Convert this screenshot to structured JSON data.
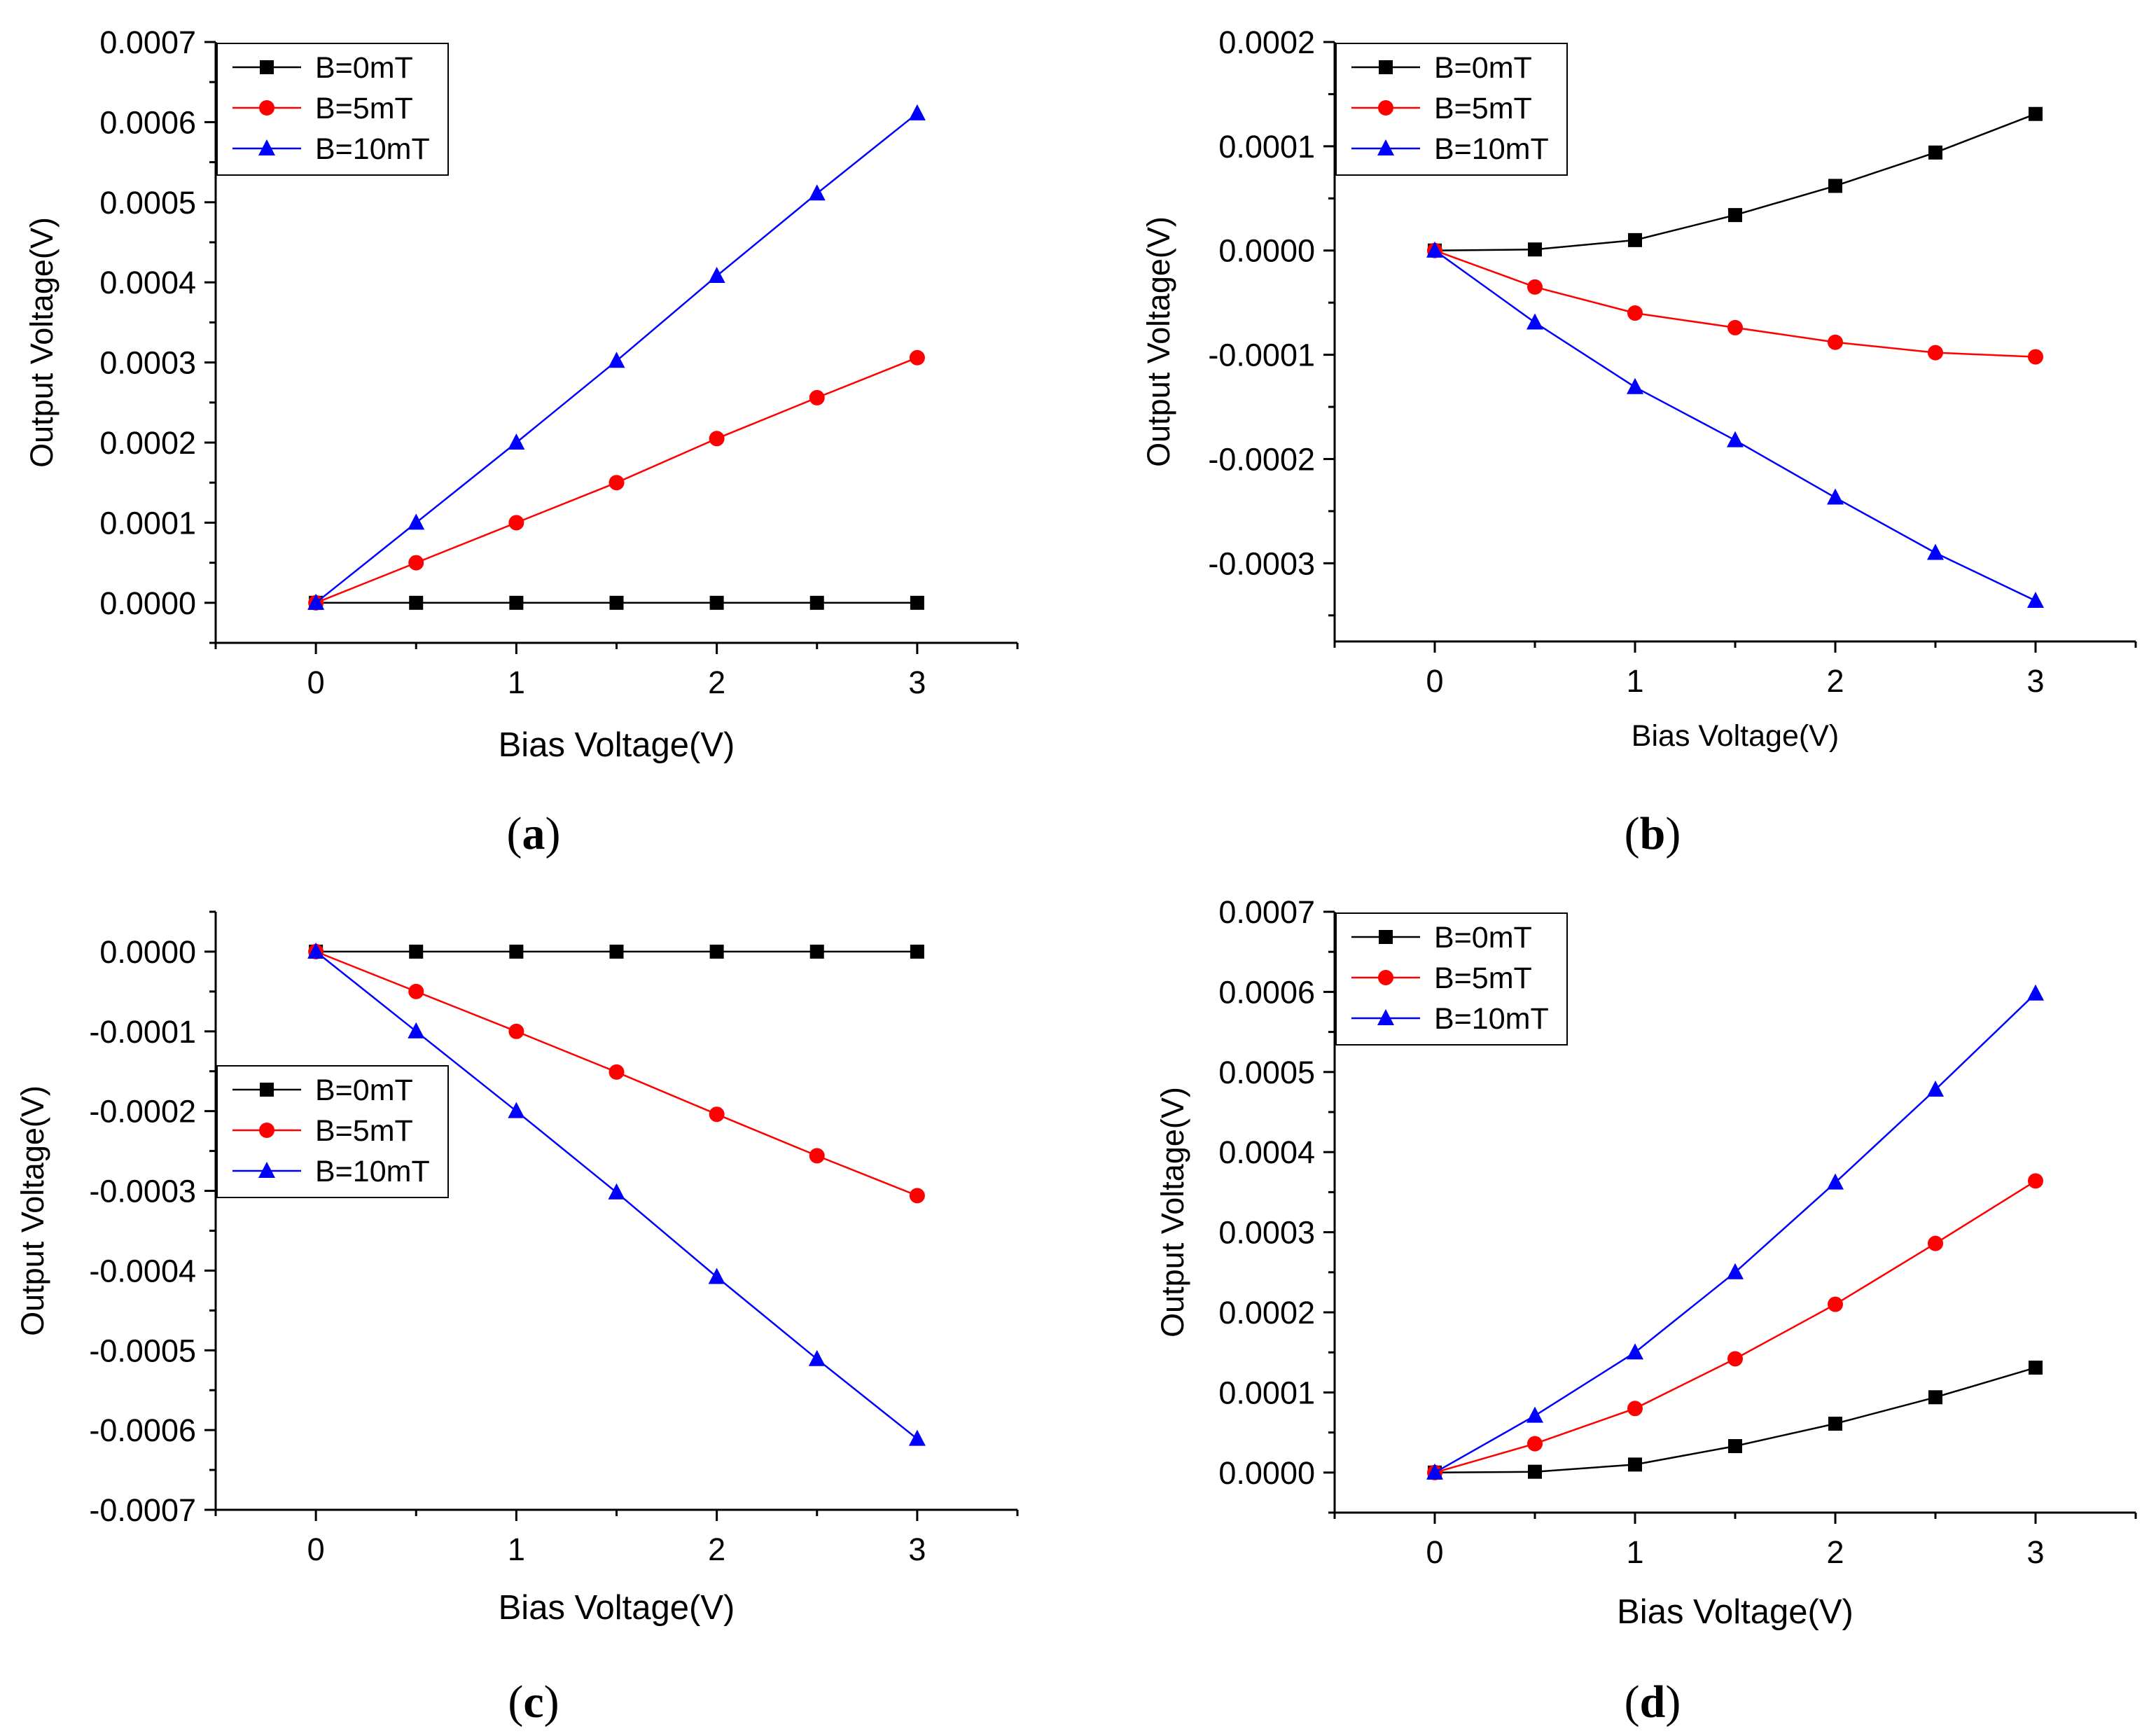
{
  "colors": {
    "B0": "#000000",
    "B5": "#ff0000",
    "B10": "#0000ff",
    "axis": "#000000",
    "background": "#ffffff"
  },
  "chart_data": [
    {
      "id": "a",
      "panel_label": {
        "open": "(",
        "letter": "a",
        "close": ")"
      },
      "type": "line",
      "xlabel": "Bias Voltage(V)",
      "ylabel": "Output Voltage(V)",
      "xlim": [
        -0.5,
        3.5
      ],
      "ylim": [
        -5e-05,
        0.0007
      ],
      "xticks": [
        0,
        1,
        2,
        3
      ],
      "xtick_labels": [
        "0",
        "1",
        "2",
        "3"
      ],
      "yticks": [
        0,
        0.0001,
        0.0002,
        0.0003,
        0.0004,
        0.0005,
        0.0006,
        0.0007
      ],
      "ytick_labels": [
        "0.0000",
        "0.0001",
        "0.0002",
        "0.0003",
        "0.0004",
        "0.0005",
        "0.0006",
        "0.0007"
      ],
      "legend_position": "top-left",
      "x": [
        0,
        0.5,
        1,
        1.5,
        2,
        2.5,
        3
      ],
      "series": [
        {
          "name": "B=0mT",
          "marker": "square",
          "color": "#000000",
          "values": [
            0,
            0,
            0,
            0,
            0,
            0,
            0
          ]
        },
        {
          "name": "B=5mT",
          "marker": "circle",
          "color": "#ff0000",
          "values": [
            0,
            5e-05,
            0.0001,
            0.00015,
            0.000205,
            0.000256,
            0.000306
          ]
        },
        {
          "name": "B=10mT",
          "marker": "triangle",
          "color": "#0000ff",
          "values": [
            0,
            0.0001,
            0.0002,
            0.000302,
            0.000408,
            0.000511,
            0.000611
          ]
        }
      ]
    },
    {
      "id": "b",
      "panel_label": {
        "open": "(",
        "letter": "b",
        "close": ")"
      },
      "type": "line",
      "xlabel": "Bias Voltage(V)",
      "ylabel": "Output Voltage(V)",
      "xlim": [
        -0.5,
        3.5
      ],
      "ylim": [
        -0.000375,
        0.0002
      ],
      "xticks": [
        0,
        1,
        2,
        3
      ],
      "xtick_labels": [
        "0",
        "1",
        "2",
        "3"
      ],
      "yticks": [
        -0.0003,
        -0.0002,
        -0.0001,
        0,
        0.0001,
        0.0002
      ],
      "ytick_labels": [
        "-0.0003",
        "-0.0002",
        "-0.0001",
        "0.0000",
        "0.0001",
        "0.0002"
      ],
      "legend_position": "top-left",
      "x": [
        0,
        0.5,
        1,
        1.5,
        2,
        2.5,
        3
      ],
      "series": [
        {
          "name": "B=0mT",
          "marker": "square",
          "color": "#000000",
          "values": [
            0,
            1e-06,
            1e-05,
            3.4e-05,
            6.2e-05,
            9.4e-05,
            0.000131
          ]
        },
        {
          "name": "B=5mT",
          "marker": "circle",
          "color": "#ff0000",
          "values": [
            0,
            -3.5e-05,
            -6e-05,
            -7.4e-05,
            -8.8e-05,
            -9.8e-05,
            -0.000102
          ]
        },
        {
          "name": "B=10mT",
          "marker": "triangle",
          "color": "#0000ff",
          "values": [
            0,
            -6.9e-05,
            -0.000131,
            -0.000182,
            -0.000237,
            -0.00029,
            -0.000336
          ]
        }
      ]
    },
    {
      "id": "c",
      "panel_label": {
        "open": "(",
        "letter": "c",
        "close": ")"
      },
      "type": "line",
      "xlabel": "Bias Voltage(V)",
      "ylabel": "Output Voltage(V)",
      "xlim": [
        -0.5,
        3.5
      ],
      "ylim": [
        -0.0007,
        5e-05
      ],
      "xticks": [
        0,
        1,
        2,
        3
      ],
      "xtick_labels": [
        "0",
        "1",
        "2",
        "3"
      ],
      "yticks": [
        0,
        -0.0001,
        -0.0002,
        -0.0003,
        -0.0004,
        -0.0005,
        -0.0006,
        -0.0007
      ],
      "ytick_labels": [
        "0.0000",
        "-0.0001",
        "-0.0002",
        "-0.0003",
        "-0.0004",
        "-0.0005",
        "-0.0006",
        "-0.0007"
      ],
      "legend_position": "middle-left",
      "x": [
        0,
        0.5,
        1,
        1.5,
        2,
        2.5,
        3
      ],
      "series": [
        {
          "name": "B=0mT",
          "marker": "square",
          "color": "#000000",
          "values": [
            0,
            0,
            0,
            0,
            0,
            0,
            0
          ]
        },
        {
          "name": "B=5mT",
          "marker": "circle",
          "color": "#ff0000",
          "values": [
            0,
            -5e-05,
            -0.0001,
            -0.000151,
            -0.000204,
            -0.000256,
            -0.000306
          ]
        },
        {
          "name": "B=10mT",
          "marker": "triangle",
          "color": "#0000ff",
          "values": [
            0,
            -0.0001,
            -0.0002,
            -0.000302,
            -0.000408,
            -0.000511,
            -0.000611
          ]
        }
      ]
    },
    {
      "id": "d",
      "panel_label": {
        "open": "(",
        "letter": "d",
        "close": ")"
      },
      "type": "line",
      "xlabel": "Bias Voltage(V)",
      "ylabel": "Output Voltage(V)",
      "xlim": [
        -0.5,
        3.5
      ],
      "ylim": [
        -5e-05,
        0.0007
      ],
      "xticks": [
        0,
        1,
        2,
        3
      ],
      "xtick_labels": [
        "0",
        "1",
        "2",
        "3"
      ],
      "yticks": [
        0,
        0.0001,
        0.0002,
        0.0003,
        0.0004,
        0.0005,
        0.0006,
        0.0007
      ],
      "ytick_labels": [
        "0.0000",
        "0.0001",
        "0.0002",
        "0.0003",
        "0.0004",
        "0.0005",
        "0.0006",
        "0.0007"
      ],
      "legend_position": "top-left",
      "x": [
        0,
        0.5,
        1,
        1.5,
        2,
        2.5,
        3
      ],
      "series": [
        {
          "name": "B=0mT",
          "marker": "square",
          "color": "#000000",
          "values": [
            0,
            1e-06,
            1e-05,
            3.3e-05,
            6.1e-05,
            9.4e-05,
            0.000131
          ]
        },
        {
          "name": "B=5mT",
          "marker": "circle",
          "color": "#ff0000",
          "values": [
            0,
            3.6e-05,
            8e-05,
            0.000142,
            0.00021,
            0.000286,
            0.000364
          ]
        },
        {
          "name": "B=10mT",
          "marker": "triangle",
          "color": "#0000ff",
          "values": [
            0,
            7.1e-05,
            0.00015,
            0.00025,
            0.000362,
            0.000478,
            0.000598
          ]
        }
      ]
    }
  ]
}
